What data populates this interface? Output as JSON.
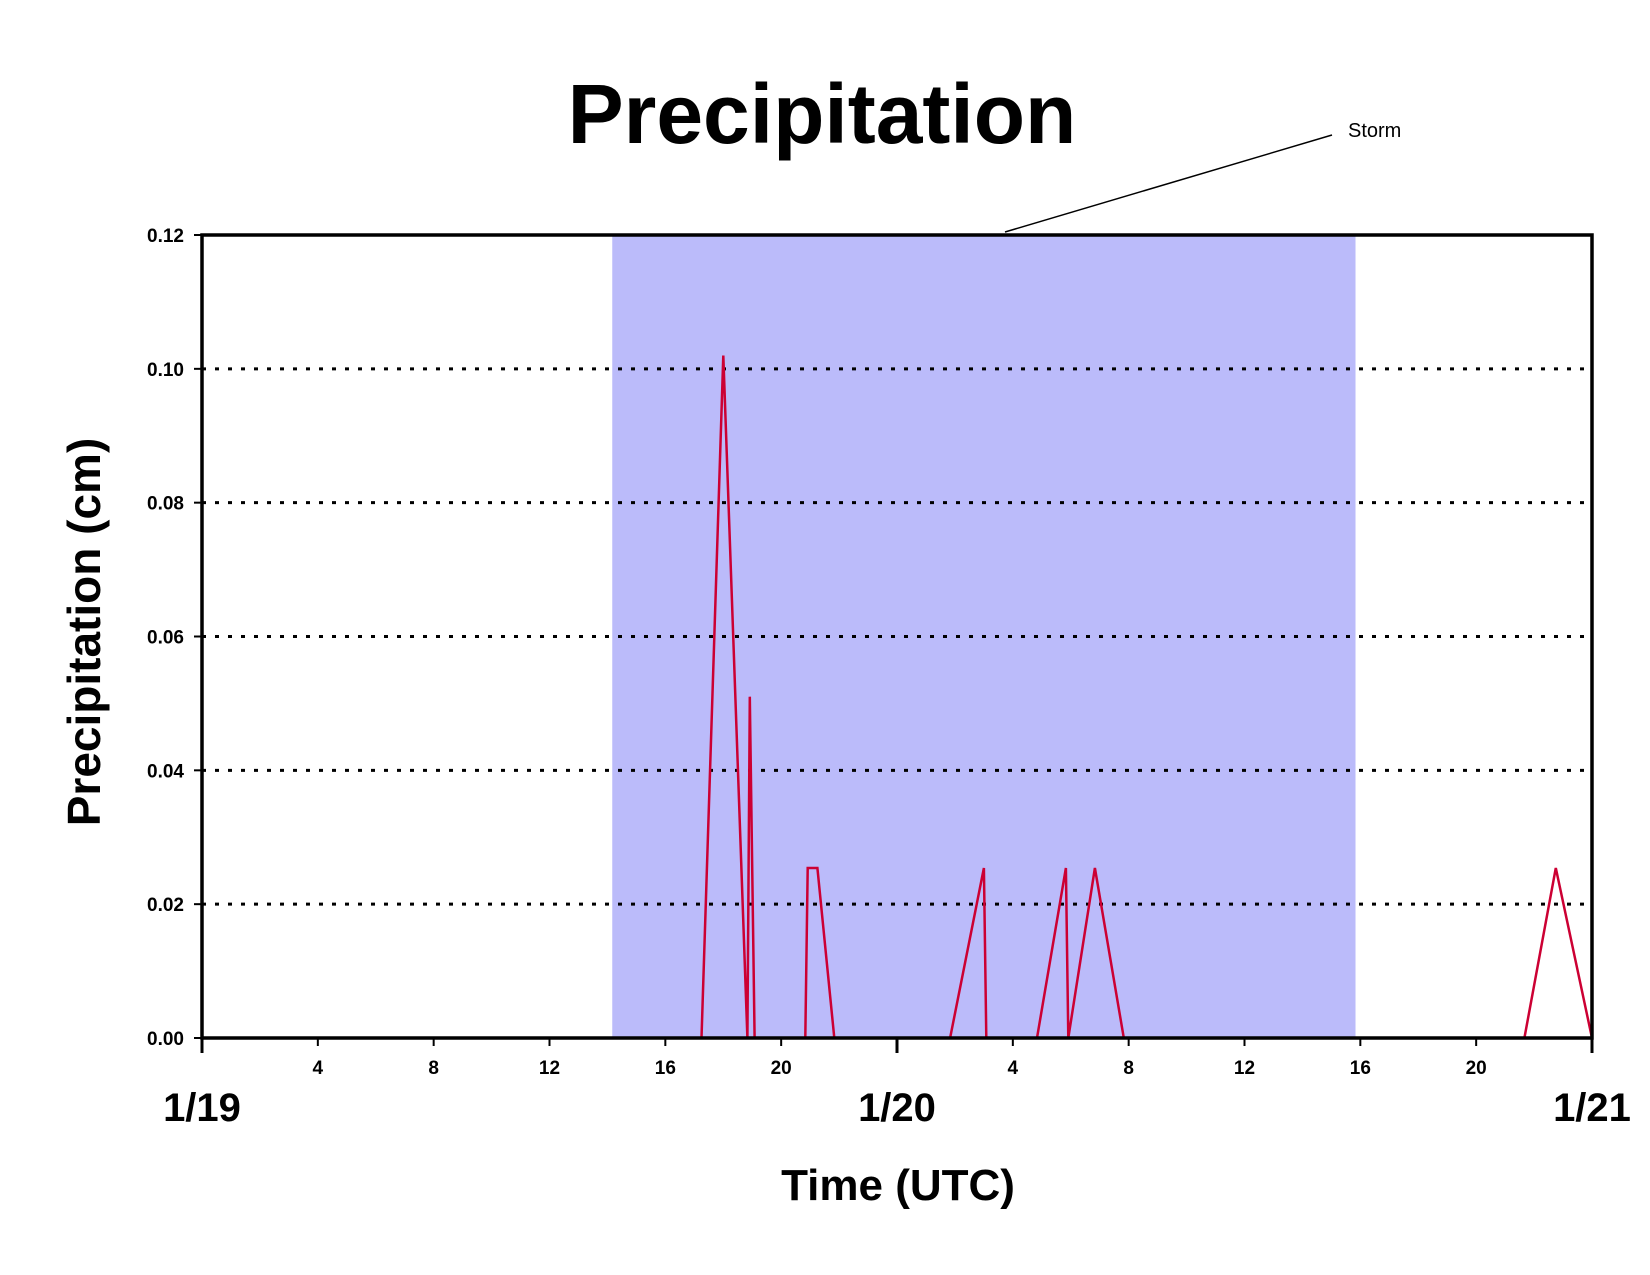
{
  "chart_data": {
    "type": "line",
    "title": "Precipitation",
    "xlabel": "Time (UTC)",
    "ylabel": "Precipitation (cm)",
    "ylim": [
      0,
      0.12
    ],
    "xlim_hours": [
      0,
      48
    ],
    "yticks": [
      "0.00",
      "0.02",
      "0.04",
      "0.06",
      "0.08",
      "0.10",
      "0.12"
    ],
    "xticks_hours": [
      "4",
      "8",
      "12",
      "16",
      "20",
      "4",
      "8",
      "12",
      "16",
      "20"
    ],
    "xticks_dates": [
      "1/19",
      "1/20",
      "1/21"
    ],
    "grid": "horizontal dotted",
    "shaded_region": {
      "label": "Storm",
      "start": "1/19 14:10",
      "end": "1/20 15:50",
      "color": "#bbbbfa"
    },
    "series": [
      {
        "color": "#cc0033",
        "x": [
          "1/19 00:00",
          "1/19 17:15",
          "1/19 18:00",
          "1/19 18:50",
          "1/19 18:55",
          "1/19 19:05",
          "1/19 20:50",
          "1/19 20:55",
          "1/19 21:15",
          "1/19 21:50",
          "1/20 01:50",
          "1/20 03:00",
          "1/20 03:05",
          "1/20 04:50",
          "1/20 05:50",
          "1/20 05:55",
          "1/20 06:50",
          "1/20 07:50",
          "1/20 21:40",
          "1/20 22:45",
          "1/21 00:00"
        ],
        "y": [
          0,
          0,
          0.102,
          0,
          0.051,
          0,
          0,
          0.0254,
          0.0254,
          0,
          0,
          0.0254,
          0,
          0,
          0.0254,
          0,
          0.0254,
          0,
          0,
          0.0254,
          0
        ]
      }
    ]
  }
}
